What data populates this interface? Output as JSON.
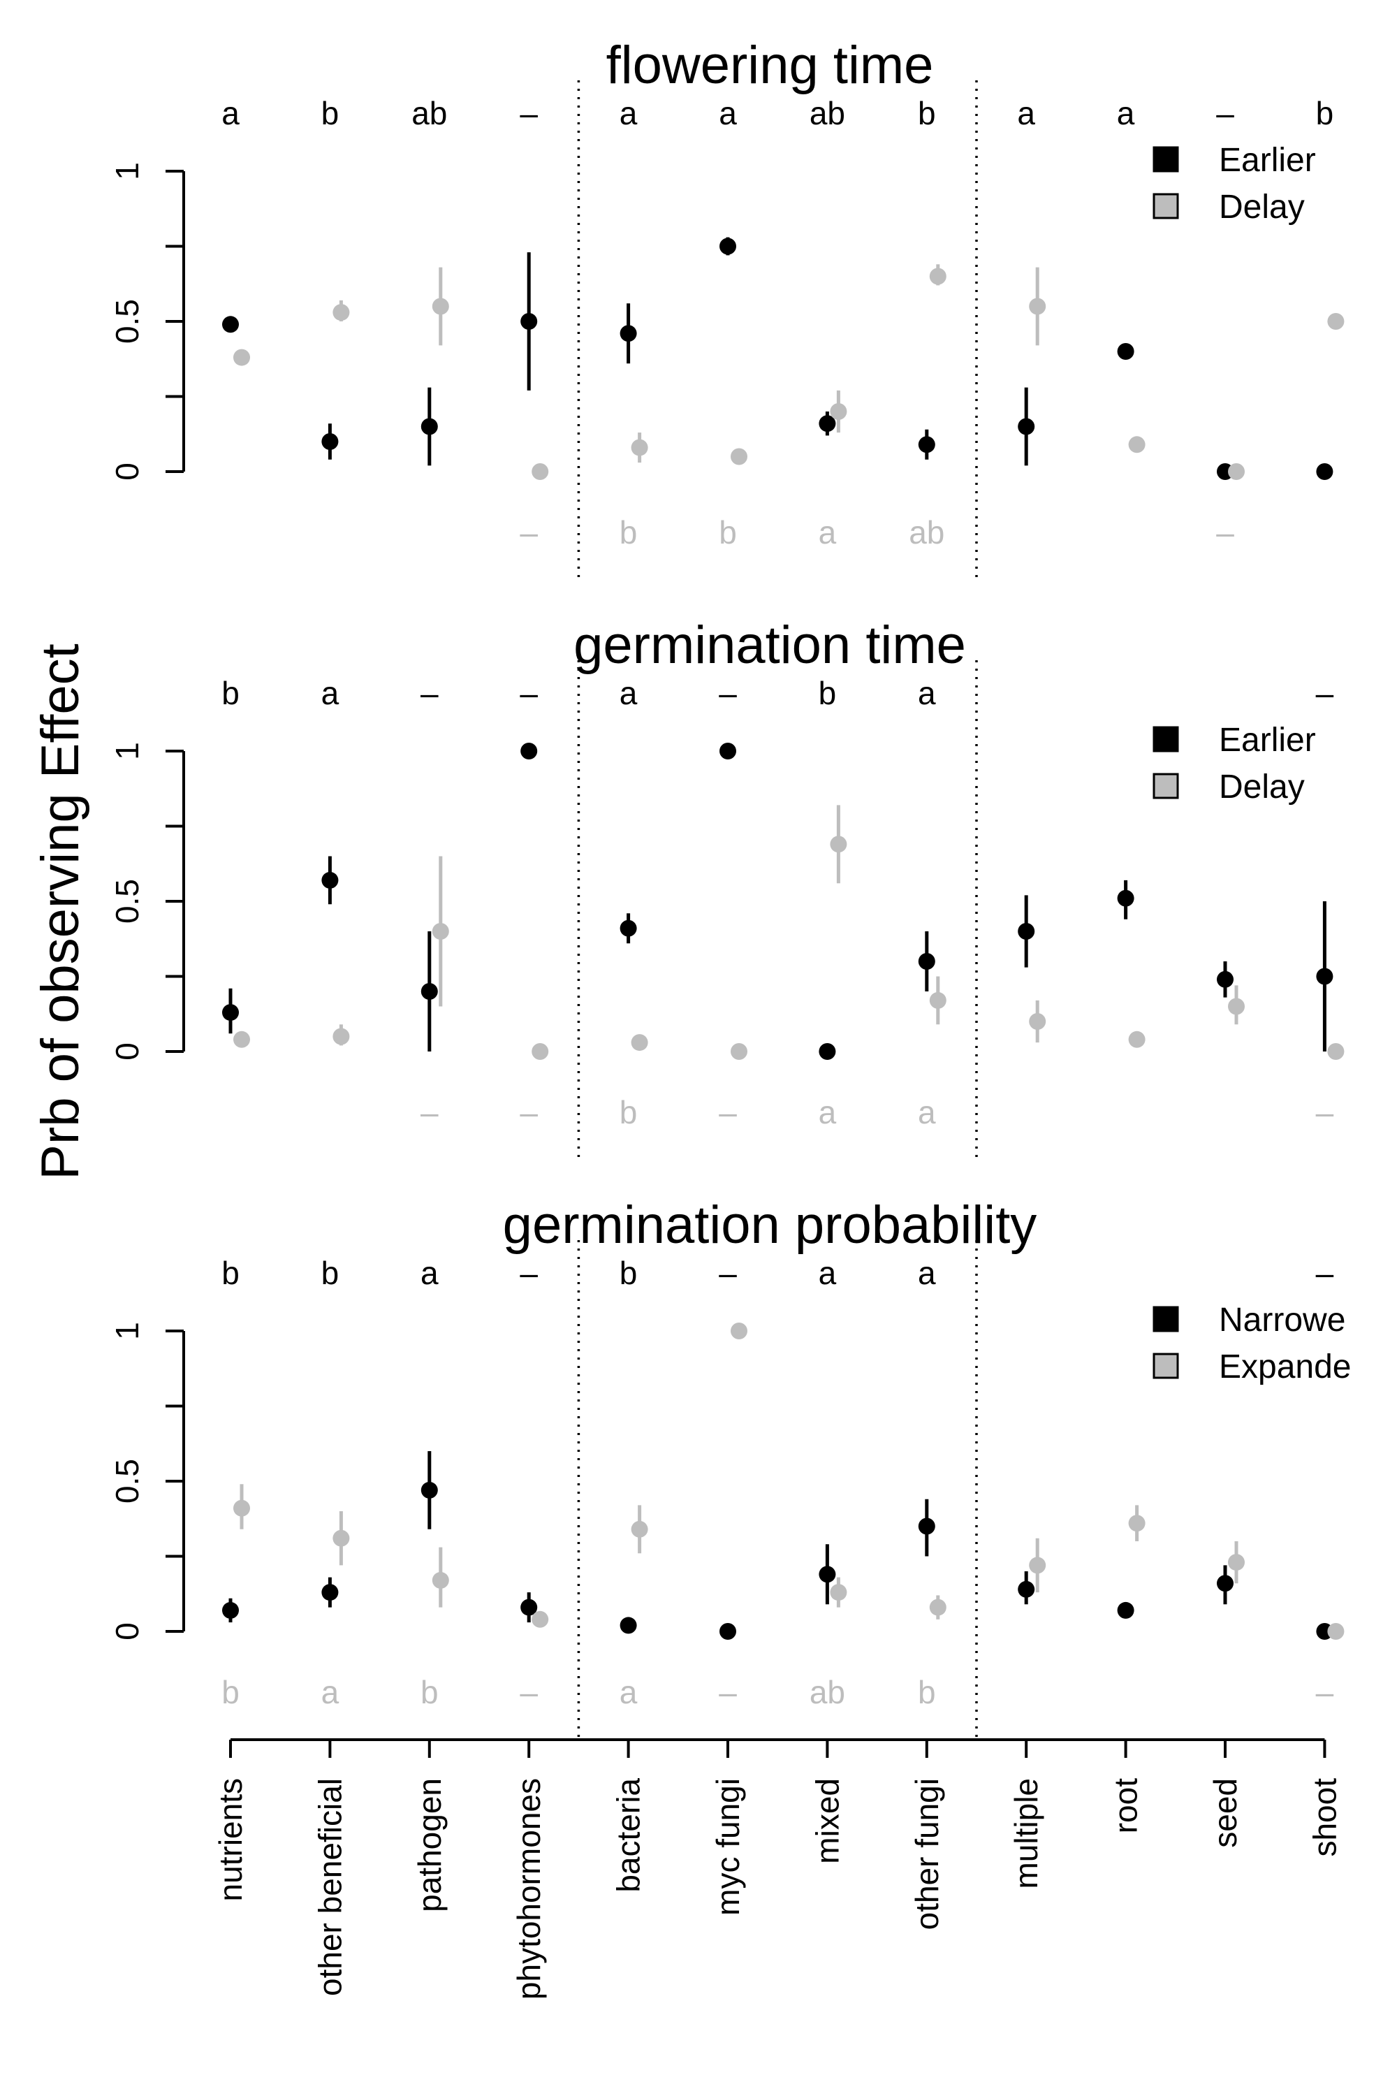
{
  "figure": {
    "ylabel": "Prb of observing Effect",
    "categories": [
      "nutrients",
      "other beneficial",
      "pathogen",
      "phytohormones",
      "bacteria",
      "myc fungi",
      "mixed",
      "other fungi",
      "multiple",
      "root",
      "seed",
      "shoot"
    ],
    "group_separators_after": [
      3,
      7
    ],
    "colors": {
      "series1": "#000000",
      "series2": "#bdbdbd",
      "axis": "#000000"
    }
  },
  "chart_data": [
    {
      "type": "scatter",
      "title": "flowering time",
      "ylim": [
        0,
        1
      ],
      "yticks": [
        "0",
        "0.5",
        "1"
      ],
      "legend": {
        "position": "top-right",
        "entries": [
          "Earlier",
          "Delay"
        ]
      },
      "top_letters": [
        "a",
        "b",
        "ab",
        "–",
        "a",
        "a",
        "ab",
        "b",
        "a",
        "a",
        "–",
        "b"
      ],
      "bottom_letters": [
        "",
        "",
        "",
        "–",
        "b",
        "b",
        "a",
        "ab",
        "",
        "",
        "–",
        ""
      ],
      "series": [
        {
          "name": "Earlier",
          "values": [
            0.49,
            0.1,
            0.15,
            0.5,
            0.46,
            0.75,
            0.16,
            0.09,
            0.15,
            0.4,
            0.0,
            0.0
          ],
          "lower": [
            0.47,
            0.04,
            0.02,
            0.27,
            0.36,
            0.72,
            0.12,
            0.04,
            0.02,
            0.4,
            0.0,
            0.0
          ],
          "upper": [
            0.51,
            0.16,
            0.28,
            0.73,
            0.56,
            0.78,
            0.2,
            0.14,
            0.28,
            0.4,
            0.0,
            0.0
          ]
        },
        {
          "name": "Delay",
          "values": [
            0.38,
            0.53,
            0.55,
            0.0,
            0.08,
            0.05,
            0.2,
            0.65,
            0.55,
            0.09,
            0.0,
            0.5
          ],
          "lower": [
            0.38,
            0.5,
            0.42,
            0.0,
            0.03,
            0.05,
            0.13,
            0.62,
            0.42,
            0.08,
            0.0,
            0.5
          ],
          "upper": [
            0.38,
            0.57,
            0.68,
            0.0,
            0.13,
            0.05,
            0.27,
            0.69,
            0.68,
            0.1,
            0.0,
            0.5
          ]
        }
      ]
    },
    {
      "type": "scatter",
      "title": "germination time",
      "ylim": [
        0,
        1
      ],
      "yticks": [
        "0",
        "0.5",
        "1"
      ],
      "legend": {
        "position": "top-right",
        "entries": [
          "Earlier",
          "Delay"
        ]
      },
      "top_letters": [
        "b",
        "a",
        "–",
        "–",
        "a",
        "–",
        "b",
        "a",
        "",
        "",
        "",
        "–"
      ],
      "bottom_letters": [
        "",
        "",
        "–",
        "–",
        "b",
        "–",
        "a",
        "a",
        "",
        "",
        "",
        "–"
      ],
      "series": [
        {
          "name": "Earlier",
          "values": [
            0.13,
            0.57,
            0.2,
            1.0,
            0.41,
            1.0,
            0.0,
            0.3,
            0.4,
            0.51,
            0.24,
            0.25
          ],
          "lower": [
            0.06,
            0.49,
            0.0,
            1.0,
            0.36,
            1.0,
            0.0,
            0.2,
            0.28,
            0.44,
            0.18,
            0.0
          ],
          "upper": [
            0.21,
            0.65,
            0.4,
            1.0,
            0.46,
            1.0,
            0.0,
            0.4,
            0.52,
            0.57,
            0.3,
            0.5
          ]
        },
        {
          "name": "Delay",
          "values": [
            0.04,
            0.05,
            0.4,
            0.0,
            0.03,
            0.0,
            0.69,
            0.17,
            0.1,
            0.04,
            0.15,
            0.0
          ],
          "lower": [
            0.04,
            0.02,
            0.15,
            0.0,
            0.03,
            0.0,
            0.56,
            0.09,
            0.03,
            0.04,
            0.09,
            0.0
          ],
          "upper": [
            0.04,
            0.09,
            0.65,
            0.0,
            0.03,
            0.0,
            0.82,
            0.25,
            0.17,
            0.04,
            0.22,
            0.0
          ]
        }
      ]
    },
    {
      "type": "scatter",
      "title": "germination probability",
      "ylim": [
        0,
        1
      ],
      "yticks": [
        "0",
        "0.5",
        "1"
      ],
      "legend": {
        "position": "top-right",
        "entries": [
          "Narrowe",
          "Expande"
        ]
      },
      "top_letters": [
        "b",
        "b",
        "a",
        "–",
        "b",
        "–",
        "a",
        "a",
        "",
        "",
        "",
        "–"
      ],
      "bottom_letters": [
        "b",
        "a",
        "b",
        "–",
        "a",
        "–",
        "ab",
        "b",
        "",
        "",
        "",
        "–"
      ],
      "series": [
        {
          "name": "Narrowe",
          "values": [
            0.07,
            0.13,
            0.47,
            0.08,
            0.02,
            0.0,
            0.19,
            0.35,
            0.14,
            0.07,
            0.16,
            0.0
          ],
          "lower": [
            0.03,
            0.08,
            0.34,
            0.03,
            0.02,
            0.0,
            0.09,
            0.25,
            0.09,
            0.07,
            0.09,
            0.0
          ],
          "upper": [
            0.11,
            0.18,
            0.6,
            0.13,
            0.02,
            0.0,
            0.29,
            0.44,
            0.2,
            0.07,
            0.22,
            0.0
          ]
        },
        {
          "name": "Expande",
          "values": [
            0.41,
            0.31,
            0.17,
            0.04,
            0.34,
            1.0,
            0.13,
            0.08,
            0.22,
            0.36,
            0.23,
            0.0
          ],
          "lower": [
            0.34,
            0.22,
            0.08,
            0.02,
            0.26,
            1.0,
            0.08,
            0.04,
            0.13,
            0.3,
            0.16,
            0.0
          ],
          "upper": [
            0.49,
            0.4,
            0.28,
            0.06,
            0.42,
            1.0,
            0.18,
            0.12,
            0.31,
            0.42,
            0.3,
            0.0
          ]
        }
      ]
    }
  ]
}
